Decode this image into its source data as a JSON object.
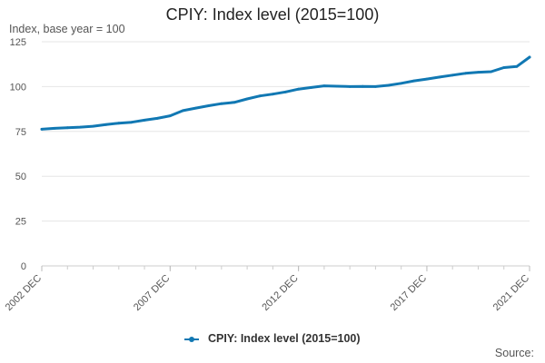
{
  "chart_data": {
    "type": "line",
    "title": "CPIY: Index level (2015=100)",
    "ylabel": "Index, base year = 100",
    "xlabel": "",
    "ylim": [
      0,
      125
    ],
    "yticks": [
      "0",
      "25",
      "50",
      "75",
      "100",
      "125"
    ],
    "xticks": [
      "2002 DEC",
      "2007 DEC",
      "2012 DEC",
      "2017 DEC",
      "2021 DEC"
    ],
    "grid": "horizontal",
    "legend_position": "bottom",
    "source": "Source:",
    "color": "#1178b3",
    "series": [
      {
        "name": "CPIY: Index level (2015=100)",
        "x": [
          "2002 DEC",
          "2003 JUN",
          "2003 DEC",
          "2004 JUN",
          "2004 DEC",
          "2005 JUN",
          "2005 DEC",
          "2006 JUN",
          "2006 DEC",
          "2007 JUN",
          "2007 DEC",
          "2008 JUN",
          "2008 DEC",
          "2009 JUN",
          "2009 DEC",
          "2010 JUN",
          "2010 DEC",
          "2011 JUN",
          "2011 DEC",
          "2012 JUN",
          "2012 DEC",
          "2013 JUN",
          "2013 DEC",
          "2014 JUN",
          "2014 DEC",
          "2015 JUN",
          "2015 DEC",
          "2016 JUN",
          "2016 DEC",
          "2017 JUN",
          "2017 DEC",
          "2018 JUN",
          "2018 DEC",
          "2019 JUN",
          "2019 DEC",
          "2020 JUN",
          "2020 DEC",
          "2021 JUN",
          "2021 DEC"
        ],
        "values": [
          76.2,
          76.7,
          77.1,
          77.4,
          77.9,
          78.8,
          79.6,
          80.1,
          81.3,
          82.3,
          83.7,
          86.6,
          88.0,
          89.3,
          90.5,
          91.2,
          93.1,
          94.8,
          95.8,
          97.0,
          98.6,
          99.5,
          100.4,
          100.2,
          100.0,
          100.1,
          100.0,
          100.7,
          101.8,
          103.2,
          104.2,
          105.3,
          106.4,
          107.4,
          108.0,
          108.3,
          110.6,
          111.2,
          116.4
        ]
      }
    ]
  }
}
